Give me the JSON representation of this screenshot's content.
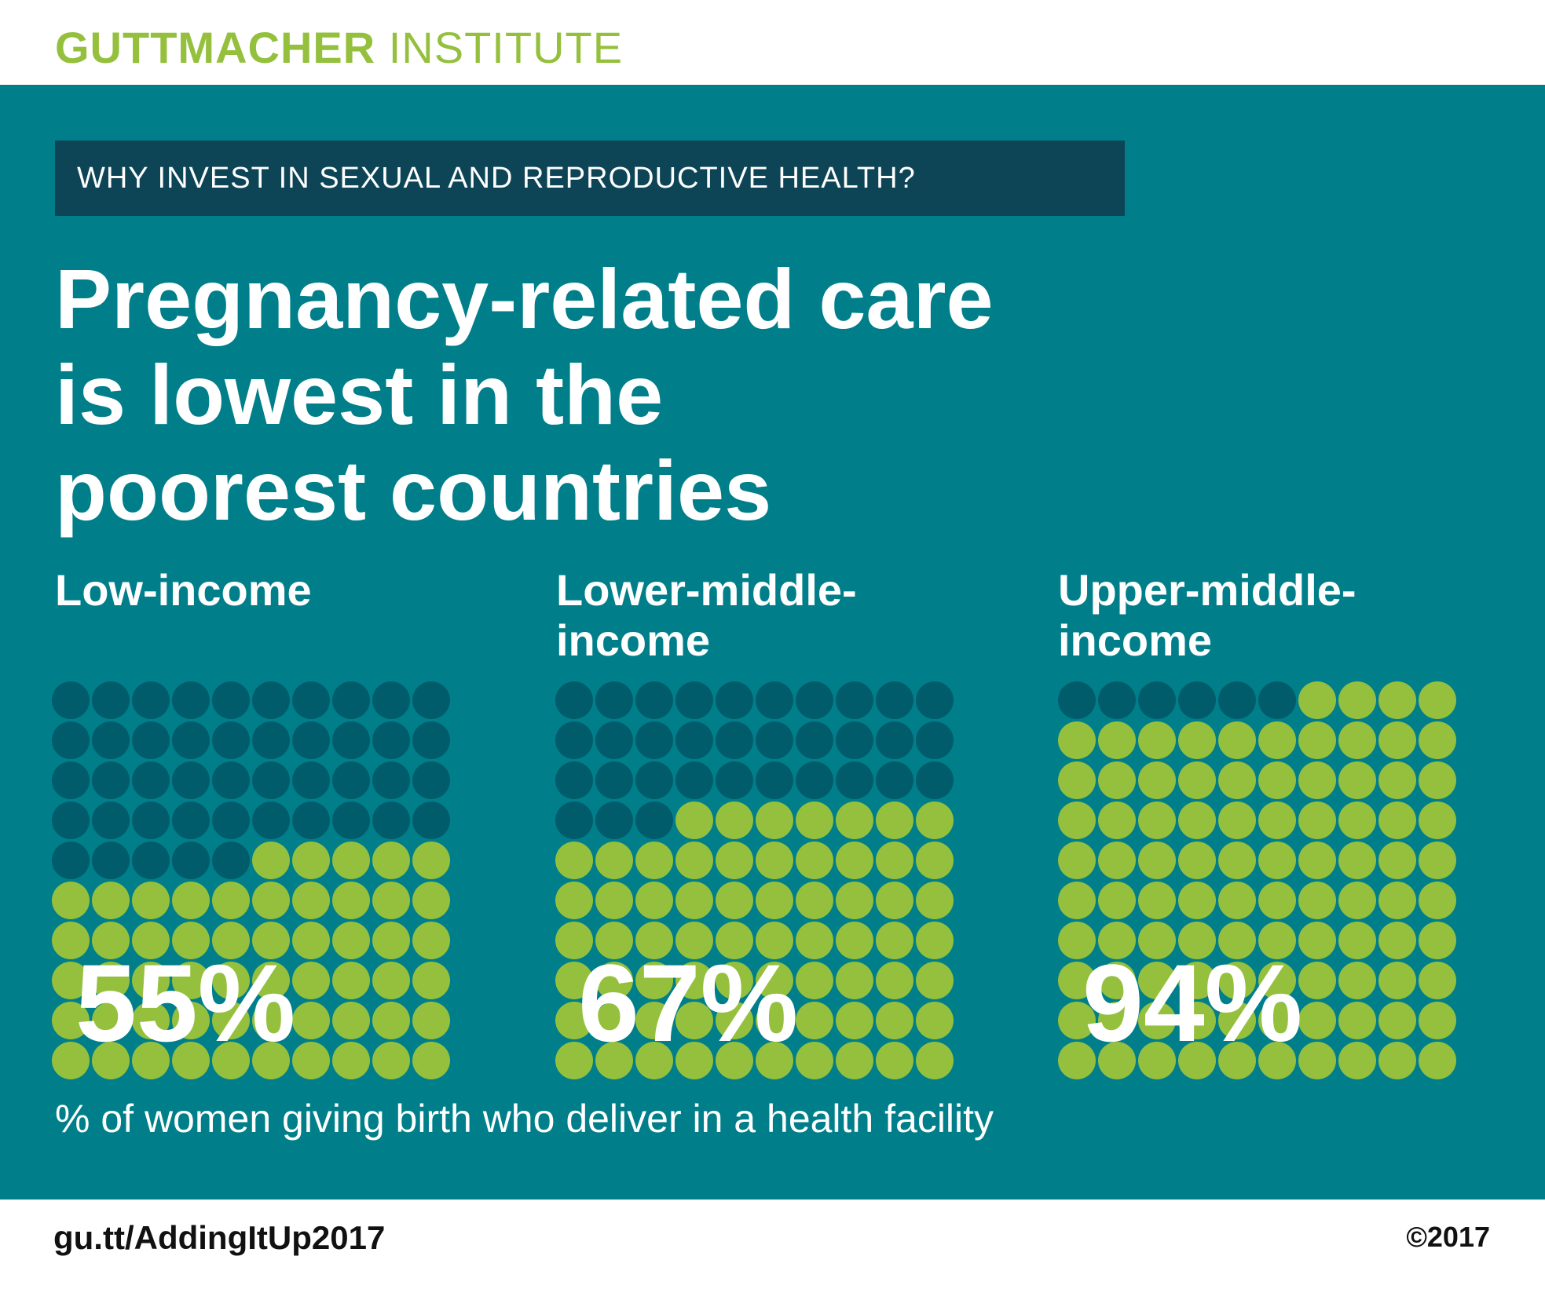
{
  "brand": {
    "bold": "GUTTMACHER",
    "regular": " INSTITUTE"
  },
  "kicker": "WHY INVEST IN SEXUAL AND REPRODUCTIVE HEALTH?",
  "title": {
    "line1": "Pregnancy-related care",
    "line2": "is lowest in the",
    "line3": "poorest countries"
  },
  "caption": "% of women giving birth who deliver in a health facility",
  "footer": {
    "url": "gu.tt/AddingItUp2017",
    "copyright": "©2017"
  },
  "colors": {
    "panel": "#007f8a",
    "kicker_bg": "#0d4556",
    "filled_dot": "#95c03d",
    "empty_dot": "#005c6b",
    "brand": "#95c03d"
  },
  "groups": [
    {
      "label_line1": "",
      "label_line2": "Low-income",
      "value_label": "55%"
    },
    {
      "label_line1": "Lower-middle-",
      "label_line2": "income",
      "value_label": "67%"
    },
    {
      "label_line1": "Upper-middle-",
      "label_line2": "income",
      "value_label": "94%"
    }
  ],
  "chart_data": {
    "type": "waffle",
    "categories": [
      "Low-income",
      "Lower-middle-income",
      "Upper-middle-income"
    ],
    "values": [
      55,
      67,
      94
    ],
    "total_per_grid": 100,
    "grid": {
      "rows": 10,
      "cols": 10
    },
    "title": "Pregnancy-related care is lowest in the poorest countries",
    "caption": "% of women giving birth who deliver in a health facility"
  }
}
